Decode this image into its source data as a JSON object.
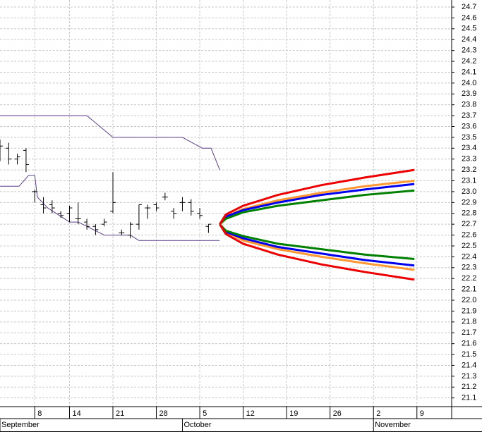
{
  "chart_data": {
    "type": "ohlc",
    "xlim": [
      -4,
      48
    ],
    "ylim": [
      21.02,
      24.765
    ],
    "grid": true,
    "yticks": [
      21.1,
      21.2,
      21.3,
      21.4,
      21.5,
      21.6,
      21.7,
      21.8,
      21.9,
      {
        "value": 22,
        "label": "22.0"
      },
      22.1,
      22.2,
      22.3,
      22.4,
      22.5,
      22.6,
      22.7,
      22.8,
      22.9,
      {
        "value": 23,
        "label": "23.0"
      },
      23.1,
      23.2,
      23.3,
      23.4,
      23.5,
      23.6,
      23.7,
      23.8,
      23.9,
      {
        "value": 24,
        "label": "24.0"
      },
      24.1,
      24.2,
      24.3,
      24.4,
      24.5,
      24.6,
      24.7
    ],
    "xticks": [
      {
        "value": 0,
        "label": "8"
      },
      {
        "value": 4,
        "label": "14"
      },
      {
        "value": 9,
        "label": "21"
      },
      {
        "value": 14,
        "label": "28"
      },
      {
        "value": 19,
        "label": "5"
      },
      {
        "value": 24,
        "label": "12"
      },
      {
        "value": 29,
        "label": "19"
      },
      {
        "value": 34,
        "label": "26"
      },
      {
        "value": 39,
        "label": "2"
      },
      {
        "value": 44,
        "label": "9"
      }
    ],
    "month_ticks": [
      {
        "value": -4,
        "label": "September"
      },
      {
        "value": 17,
        "label": "October"
      },
      {
        "value": 39,
        "label": "November"
      }
    ],
    "bar_color": "#000000",
    "x": [
      -4,
      -3,
      -2,
      -1,
      0,
      1,
      2,
      3,
      4,
      5,
      6,
      7,
      8,
      9,
      10,
      11,
      12,
      13,
      14,
      15,
      16,
      17,
      18,
      19,
      20
    ],
    "open": [
      23.45,
      23.4,
      23.3,
      23.38,
      23.0,
      22.88,
      22.88,
      22.8,
      22.8,
      22.75,
      22.72,
      22.68,
      22.7,
      22.82,
      22.62,
      22.6,
      22.7,
      22.85,
      22.88,
      22.95,
      22.82,
      22.9,
      22.9,
      22.8,
      22.68
    ],
    "high": [
      23.48,
      23.45,
      23.35,
      23.4,
      23.02,
      22.95,
      22.92,
      22.82,
      22.87,
      22.9,
      22.75,
      22.7,
      22.75,
      23.18,
      22.65,
      22.72,
      22.88,
      22.88,
      22.9,
      22.99,
      22.85,
      22.95,
      22.93,
      22.85,
      22.7
    ],
    "low": [
      23.28,
      23.25,
      23.25,
      23.18,
      22.9,
      22.8,
      22.8,
      22.76,
      22.72,
      22.7,
      22.65,
      22.6,
      22.68,
      22.8,
      22.6,
      22.57,
      22.65,
      22.75,
      22.82,
      22.92,
      22.75,
      22.82,
      22.78,
      22.75,
      22.62
    ],
    "close": [
      23.42,
      23.3,
      23.32,
      23.25,
      23.0,
      22.85,
      22.85,
      22.78,
      22.85,
      22.75,
      22.68,
      22.65,
      22.72,
      22.9,
      22.62,
      22.7,
      22.88,
      22.85,
      22.85,
      22.95,
      22.8,
      22.9,
      22.82,
      22.78,
      22.7
    ],
    "lines": [
      {
        "color": "#5a3d8a",
        "width": 1,
        "x": [
          -4,
          6,
          9,
          17,
          19.3,
          20.3,
          21.3
        ],
        "values": [
          23.7,
          23.7,
          23.5,
          23.5,
          23.4,
          23.4,
          23.2
        ]
      },
      {
        "color": "#5a3d8a",
        "width": 1,
        "x": [
          -4,
          -1.8,
          -0.7,
          0,
          0.3,
          1.5,
          4,
          5,
          8,
          11,
          12,
          21.3
        ],
        "values": [
          23.05,
          23.05,
          23.15,
          23.15,
          22.95,
          22.85,
          22.72,
          22.72,
          22.6,
          22.6,
          22.55,
          22.55
        ]
      },
      {
        "color": "#ff9933",
        "width": 3,
        "x": [
          21.3,
          22,
          24,
          28,
          33,
          38,
          43.7
        ],
        "values": [
          22.7,
          22.77,
          22.84,
          22.92,
          22.99,
          23.05,
          23.1
        ]
      },
      {
        "color": "#ff9933",
        "width": 3,
        "x": [
          21.3,
          22,
          24,
          28,
          33,
          38,
          43.7
        ],
        "values": [
          22.7,
          22.63,
          22.55,
          22.47,
          22.4,
          22.34,
          22.28
        ]
      },
      {
        "color": "#0000ee",
        "width": 3,
        "x": [
          21.3,
          22,
          24,
          28,
          33,
          38,
          43.7
        ],
        "values": [
          22.7,
          22.77,
          22.83,
          22.9,
          22.97,
          23.02,
          23.07
        ]
      },
      {
        "color": "#0000ee",
        "width": 3,
        "x": [
          21.3,
          22,
          24,
          28,
          33,
          38,
          43.7
        ],
        "values": [
          22.7,
          22.63,
          22.57,
          22.49,
          22.43,
          22.37,
          22.32
        ]
      },
      {
        "color": "#008000",
        "width": 3,
        "x": [
          21.3,
          22,
          24,
          28,
          33,
          38,
          43.7
        ],
        "values": [
          22.7,
          22.75,
          22.81,
          22.87,
          22.92,
          22.97,
          23.01
        ]
      },
      {
        "color": "#008000",
        "width": 3,
        "x": [
          21.3,
          22,
          24,
          28,
          33,
          38,
          43.7
        ],
        "values": [
          22.7,
          22.64,
          22.59,
          22.52,
          22.47,
          22.42,
          22.38
        ]
      },
      {
        "color": "#ee0000",
        "width": 3,
        "x": [
          21.3,
          22,
          24,
          28,
          33,
          38,
          43.7
        ],
        "values": [
          22.7,
          22.79,
          22.87,
          22.97,
          23.06,
          23.13,
          23.2
        ]
      },
      {
        "color": "#ee0000",
        "width": 3,
        "x": [
          21.3,
          22,
          24,
          28,
          33,
          38,
          43.7
        ],
        "values": [
          22.7,
          22.61,
          22.52,
          22.42,
          22.33,
          22.26,
          22.19
        ]
      }
    ]
  }
}
